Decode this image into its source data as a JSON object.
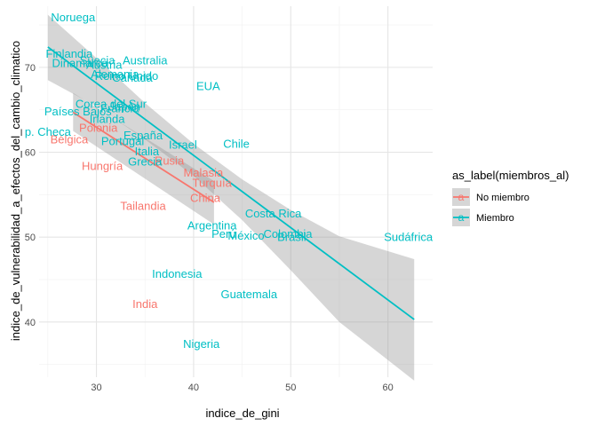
{
  "chart_data": {
    "type": "scatter",
    "title": "",
    "xlabel": "indice_de_gini",
    "ylabel": "indice_de_vulnerabilidad_a_efectos_del_cambio_climatico",
    "xlim": [
      24.1,
      64.6
    ],
    "ylim": [
      33.5,
      77.2
    ],
    "x_ticks": [
      30,
      40,
      50,
      60
    ],
    "y_ticks": [
      40,
      50,
      60,
      70
    ],
    "grid": true,
    "legend": {
      "title": "as_label(miembros_al)",
      "placement": "right",
      "key_glyph": "a"
    },
    "series": [
      {
        "name": "No miembro",
        "color": "#F8766D",
        "points": [
          {
            "label": "Bélgica",
            "x": 27.2,
            "y": 61.5
          },
          {
            "label": "Polonia",
            "x": 30.2,
            "y": 62.9
          },
          {
            "label": "Hungría",
            "x": 30.6,
            "y": 58.4
          },
          {
            "label": "Tailandia",
            "x": 34.8,
            "y": 53.7
          },
          {
            "label": "India",
            "x": 35.0,
            "y": 42.1
          },
          {
            "label": "Rusia",
            "x": 37.5,
            "y": 59.0
          },
          {
            "label": "Malasia",
            "x": 41.0,
            "y": 57.6
          },
          {
            "label": "Turquía",
            "x": 41.9,
            "y": 56.4
          },
          {
            "label": "China",
            "x": 41.2,
            "y": 54.6
          }
        ]
      },
      {
        "name": "Miembro",
        "color": "#00BFC4",
        "points": [
          {
            "label": "Noruega",
            "x": 27.6,
            "y": 75.9
          },
          {
            "label": "Finlandia",
            "x": 27.2,
            "y": 71.6
          },
          {
            "label": "Dinamarca",
            "x": 28.3,
            "y": 70.5
          },
          {
            "label": "Suecia",
            "x": 30.1,
            "y": 70.8
          },
          {
            "label": "Australia",
            "x": 35.0,
            "y": 70.8
          },
          {
            "label": "Austria",
            "x": 30.8,
            "y": 70.3
          },
          {
            "label": "Alemania",
            "x": 31.9,
            "y": 69.2
          },
          {
            "label": "Reino Unido",
            "x": 33.1,
            "y": 69.0
          },
          {
            "label": "Canadá",
            "x": 33.7,
            "y": 68.8
          },
          {
            "label": "Corea del Sur",
            "x": 31.5,
            "y": 65.7
          },
          {
            "label": "Países Bajos",
            "x": 28.1,
            "y": 64.8
          },
          {
            "label": "Francia",
            "x": 32.4,
            "y": 65.2
          },
          {
            "label": "Japón",
            "x": 32.9,
            "y": 65.4
          },
          {
            "label": "Irlanda",
            "x": 31.1,
            "y": 63.9
          },
          {
            "label": "p. Checa",
            "x": 25.0,
            "y": 62.4
          },
          {
            "label": "España",
            "x": 34.8,
            "y": 62.0
          },
          {
            "label": "Portugal",
            "x": 32.7,
            "y": 61.3
          },
          {
            "label": "Italia",
            "x": 35.2,
            "y": 60.1
          },
          {
            "label": "Grecia",
            "x": 35.0,
            "y": 58.9
          },
          {
            "label": "EUA",
            "x": 41.5,
            "y": 67.8
          },
          {
            "label": "Israel",
            "x": 38.9,
            "y": 60.9
          },
          {
            "label": "Chile",
            "x": 44.4,
            "y": 61.0
          },
          {
            "label": "Costa Rica",
            "x": 48.2,
            "y": 52.8
          },
          {
            "label": "Argentina",
            "x": 41.9,
            "y": 51.4
          },
          {
            "label": "Perú",
            "x": 43.1,
            "y": 50.4
          },
          {
            "label": "México",
            "x": 45.4,
            "y": 50.2
          },
          {
            "label": "Colombia",
            "x": 49.7,
            "y": 50.4
          },
          {
            "label": "Brasil",
            "x": 50.1,
            "y": 50.0
          },
          {
            "label": "Sudáfrica",
            "x": 62.1,
            "y": 50.0
          },
          {
            "label": "Indonesia",
            "x": 38.3,
            "y": 45.7
          },
          {
            "label": "Guatemala",
            "x": 45.7,
            "y": 43.3
          },
          {
            "label": "Nigeria",
            "x": 40.8,
            "y": 37.4
          }
        ]
      }
    ],
    "fits": [
      {
        "series": "No miembro",
        "color": "#F8766D",
        "x": [
          27.6,
          42.1
        ],
        "y": [
          64.7,
          54.1
        ],
        "ci_lower": [
          62.5,
          51.5
        ],
        "ci_upper": [
          67.0,
          56.6
        ]
      },
      {
        "series": "Miembro",
        "color": "#00BFC4",
        "x": [
          25.0,
          62.7
        ],
        "y": [
          72.4,
          40.3
        ],
        "ci_x": [
          25.0,
          30.0,
          35.0,
          40.0,
          45.0,
          50.0,
          55.0,
          62.7
        ],
        "ci_lower": [
          68.5,
          65.4,
          61.5,
          57.2,
          52.0,
          46.1,
          40.0,
          33.1
        ],
        "ci_upper": [
          76.2,
          71.1,
          65.8,
          61.0,
          56.8,
          53.2,
          50.1,
          47.4
        ]
      }
    ]
  }
}
